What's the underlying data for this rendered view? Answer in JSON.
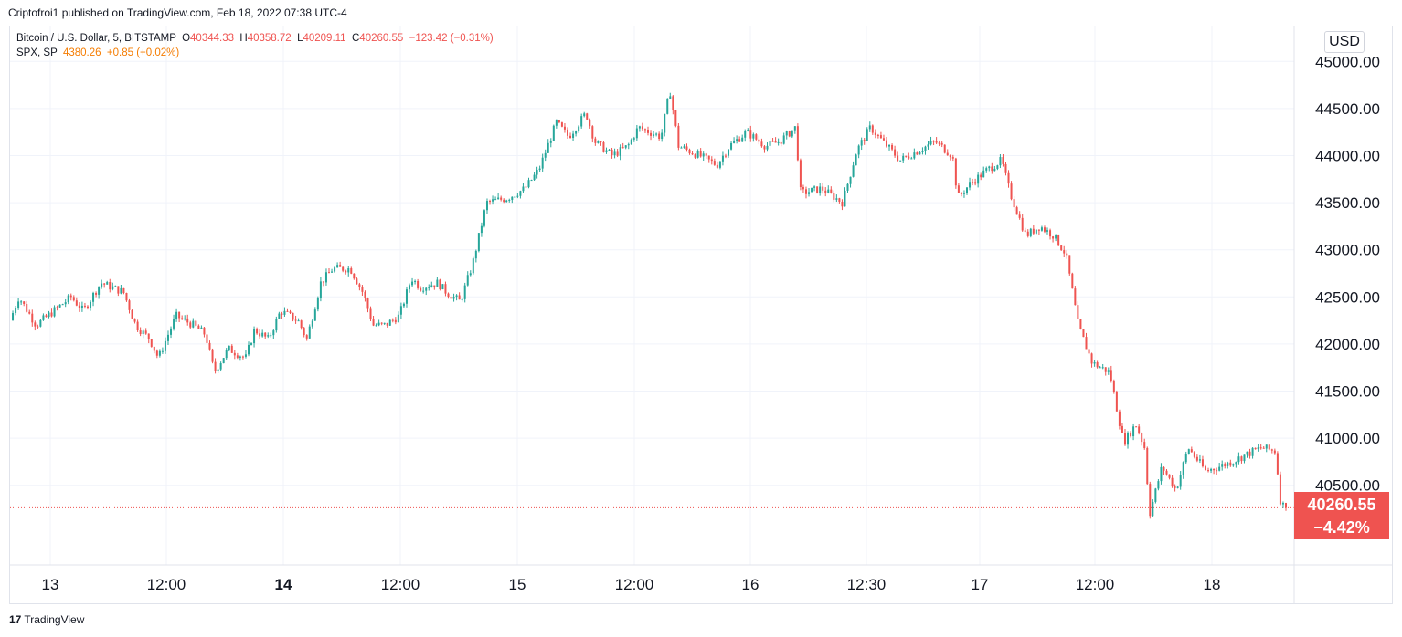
{
  "header": {
    "published": "Criptofroi1 published on TradingView.com, Feb 18, 2022 07:38 UTC-4"
  },
  "legend": {
    "line1": {
      "symbol": "Bitcoin / U.S. Dollar, 5, BITSTAMP",
      "open_label": "O",
      "open": "40344.33",
      "high_label": "H",
      "high": "40358.72",
      "low_label": "L",
      "low": "40209.11",
      "close_label": "C",
      "close": "40260.55",
      "change": "−123.42 (−0.31%)"
    },
    "line2": {
      "symbol": "SPX, SP",
      "value": "4380.26",
      "change": "+0.85 (+0.02%)"
    }
  },
  "currency_button": "USD",
  "last_price": {
    "value": "40260.55",
    "change_pct": "−4.42%"
  },
  "footer": {
    "logo": "17",
    "brand": "TradingView"
  },
  "colors": {
    "up": "#26a69a",
    "down": "#ef5350",
    "spx": "#f57c00",
    "grid": "#f0f3fa"
  },
  "chart_data": {
    "type": "candlestick",
    "title": "Bitcoin / U.S. Dollar, 5, BITSTAMP",
    "ylabel": "USD",
    "ylim": [
      39700,
      45500
    ],
    "y_ticks": [
      "40500.00",
      "41000.00",
      "41500.00",
      "42000.00",
      "42500.00",
      "43000.00",
      "43500.00",
      "44000.00",
      "44500.00",
      "45000.00"
    ],
    "x_ticks": [
      "13",
      "12:00",
      "14",
      "12:00",
      "15",
      "12:00",
      "16",
      "12:30",
      "17",
      "12:00",
      "18"
    ],
    "x_ticks_bold": [
      "14"
    ],
    "grid": true,
    "last_close": 40260.55,
    "path": [
      [
        0,
        42250
      ],
      [
        0.5,
        42500
      ],
      [
        1.5,
        42200
      ],
      [
        2.5,
        42350
      ],
      [
        3.5,
        42500
      ],
      [
        4.2,
        42350
      ],
      [
        5.2,
        42650
      ],
      [
        6.5,
        42550
      ],
      [
        7.2,
        42200
      ],
      [
        8,
        42050
      ],
      [
        8.5,
        41850
      ],
      [
        9.5,
        42300
      ],
      [
        10.5,
        42200
      ],
      [
        11.2,
        42100
      ],
      [
        11.7,
        41700
      ],
      [
        12.5,
        41950
      ],
      [
        13.5,
        41850
      ],
      [
        14,
        42150
      ],
      [
        14.8,
        42050
      ],
      [
        15.5,
        42350
      ],
      [
        16.5,
        42250
      ],
      [
        17,
        42050
      ],
      [
        17.8,
        42650
      ],
      [
        18.5,
        42800
      ],
      [
        19.5,
        42800
      ],
      [
        20.2,
        42550
      ],
      [
        20.8,
        42200
      ],
      [
        21.5,
        42200
      ],
      [
        22.3,
        42300
      ],
      [
        23,
        42700
      ],
      [
        23.5,
        42600
      ],
      [
        24.5,
        42650
      ],
      [
        25,
        42550
      ],
      [
        25.8,
        42450
      ],
      [
        26.5,
        42850
      ],
      [
        27.3,
        43500
      ],
      [
        28.5,
        43550
      ],
      [
        29.5,
        43650
      ],
      [
        30.3,
        43850
      ],
      [
        31.3,
        44350
      ],
      [
        32,
        44200
      ],
      [
        33,
        44450
      ],
      [
        33.5,
        44150
      ],
      [
        34.5,
        44000
      ],
      [
        35.4,
        44100
      ],
      [
        36,
        44300
      ],
      [
        37.3,
        44200
      ],
      [
        37.8,
        44700
      ],
      [
        38.3,
        44100
      ],
      [
        39.5,
        44000
      ],
      [
        40.5,
        43900
      ],
      [
        41.2,
        44100
      ],
      [
        42.2,
        44250
      ],
      [
        43.3,
        44100
      ],
      [
        44.1,
        44150
      ],
      [
        45,
        44300
      ],
      [
        45.3,
        43600
      ],
      [
        46.5,
        43650
      ],
      [
        47.7,
        43500
      ],
      [
        48.5,
        44050
      ],
      [
        49.3,
        44300
      ],
      [
        50,
        44150
      ],
      [
        51,
        43950
      ],
      [
        52,
        44050
      ],
      [
        53,
        44150
      ],
      [
        54,
        44000
      ],
      [
        54.3,
        43550
      ],
      [
        55,
        43700
      ],
      [
        56,
        43850
      ],
      [
        56.8,
        43950
      ],
      [
        57.3,
        43600
      ],
      [
        58.2,
        43150
      ],
      [
        59,
        43250
      ],
      [
        59.8,
        43150
      ],
      [
        60.5,
        42950
      ],
      [
        61.2,
        42200
      ],
      [
        62,
        41800
      ],
      [
        63,
        41700
      ],
      [
        63.8,
        40950
      ],
      [
        64.5,
        41150
      ],
      [
        65,
        40900
      ],
      [
        65.3,
        40200
      ],
      [
        66,
        40700
      ],
      [
        66.8,
        40450
      ],
      [
        67.5,
        40900
      ],
      [
        68.5,
        40650
      ],
      [
        69.3,
        40700
      ],
      [
        70,
        40750
      ],
      [
        71.1,
        40850
      ],
      [
        71.7,
        40900
      ],
      [
        72.5,
        40860
      ],
      [
        72.8,
        40310
      ],
      [
        73.1,
        40260.55
      ]
    ]
  }
}
